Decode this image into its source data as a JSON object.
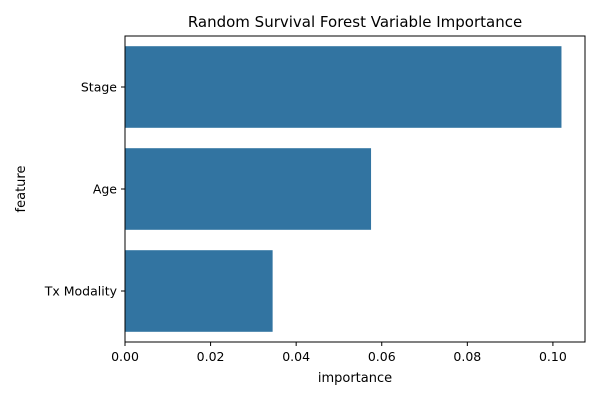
{
  "chart_data": {
    "type": "bar",
    "orientation": "horizontal",
    "title": "Random Survival Forest Variable Importance",
    "xlabel": "importance",
    "ylabel": "feature",
    "categories": [
      "Stage",
      "Age",
      "Tx Modality"
    ],
    "values": [
      0.102,
      0.0575,
      0.0345
    ],
    "xlim": [
      0,
      0.1075
    ],
    "xticks": [
      0.0,
      0.02,
      0.04,
      0.06,
      0.08,
      0.1
    ],
    "xtick_labels": [
      "0.00",
      "0.02",
      "0.04",
      "0.06",
      "0.08",
      "0.10"
    ],
    "grid": false,
    "legend": "none",
    "bar_color": "#3274a1"
  }
}
